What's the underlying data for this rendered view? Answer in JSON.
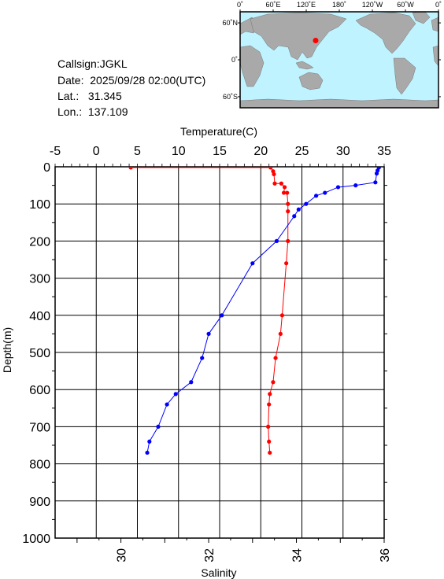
{
  "info": {
    "callsign": "Callsign:JGKL",
    "date": "Date:  2025/09/28 02:00(UTC)",
    "lat": "Lat.:   31.345",
    "lon": "Lon.:  137.109"
  },
  "map": {
    "lon_labels": [
      "0˚",
      "60˚E",
      "120˚E",
      "180˚",
      "120˚W",
      "60˚W",
      "0˚"
    ],
    "lat_labels": [
      "60˚N",
      "0˚",
      "60˚S"
    ],
    "ocean_color": "#bff3ff",
    "land_color": "#a9a9a9",
    "marker": {
      "lon": 137.109,
      "lat": 31.345,
      "color": "#ff0000"
    }
  },
  "chart_data": {
    "type": "line",
    "top_axis_title": "Temperature(C)",
    "bottom_axis_title": "Salinity",
    "y_axis_title": "Depth(m)",
    "temperature_ticks": [
      "-5",
      "0",
      "5",
      "10",
      "15",
      "20",
      "25",
      "30",
      "35"
    ],
    "salinity_ticks": [
      "30",
      "32",
      "34",
      "36"
    ],
    "depth_ticks": [
      "0",
      "100",
      "200",
      "300",
      "400",
      "500",
      "600",
      "700",
      "800",
      "900",
      "1000"
    ],
    "temperature_range": [
      -5,
      35
    ],
    "salinity_range": [
      28.5,
      36.0
    ],
    "depth_range": [
      0,
      1000
    ],
    "series": [
      {
        "quantity": "temperature",
        "color": "#ff0000",
        "points": [
          [
            4.2,
            2
          ],
          [
            21.2,
            2
          ],
          [
            21.5,
            12
          ],
          [
            21.6,
            20
          ],
          [
            21.7,
            45
          ],
          [
            22.5,
            45
          ],
          [
            22.9,
            55
          ],
          [
            22.8,
            70
          ],
          [
            23.2,
            70
          ],
          [
            23.3,
            100
          ],
          [
            23.3,
            120
          ],
          [
            23.3,
            200
          ],
          [
            23.1,
            260
          ],
          [
            22.6,
            400
          ],
          [
            22.4,
            450
          ],
          [
            21.8,
            515
          ],
          [
            21.5,
            580
          ],
          [
            21.1,
            612
          ],
          [
            21.0,
            640
          ],
          [
            20.9,
            700
          ],
          [
            21.0,
            740
          ],
          [
            21.1,
            770
          ]
        ]
      },
      {
        "quantity": "salinity",
        "color": "#0000ff",
        "points": [
          [
            35.88,
            2
          ],
          [
            35.85,
            10
          ],
          [
            35.83,
            18
          ],
          [
            35.8,
            42
          ],
          [
            35.35,
            50
          ],
          [
            34.95,
            55
          ],
          [
            34.65,
            70
          ],
          [
            34.45,
            78
          ],
          [
            34.22,
            100
          ],
          [
            34.05,
            115
          ],
          [
            33.95,
            133
          ],
          [
            33.55,
            200
          ],
          [
            33.0,
            260
          ],
          [
            32.3,
            400
          ],
          [
            32.0,
            450
          ],
          [
            31.85,
            515
          ],
          [
            31.6,
            580
          ],
          [
            31.25,
            612
          ],
          [
            31.05,
            640
          ],
          [
            30.85,
            700
          ],
          [
            30.65,
            740
          ],
          [
            30.6,
            770
          ]
        ]
      }
    ]
  }
}
